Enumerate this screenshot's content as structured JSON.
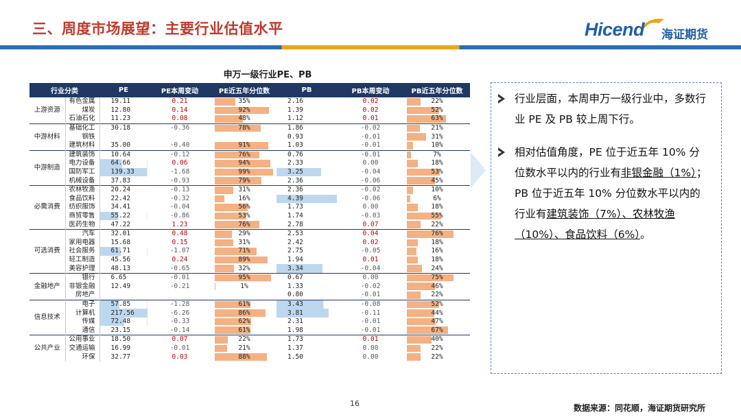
{
  "header": {
    "title": "三、周度市场展望：主要行业估值水平",
    "logo_text": "Hicend",
    "logo_cn": "海证期货"
  },
  "table": {
    "title": "申万一级行业PE、PB",
    "columns": [
      "行业分类",
      "PE",
      "PE本周变动",
      "PE近五年分位数",
      "PB",
      "PB本周变动",
      "PB近五年分位数"
    ],
    "groups": [
      {
        "name": "上游资源",
        "rows": [
          {
            "ind": "有色金属",
            "pe": "19.11",
            "pe_chg": "0.21",
            "pe_pct": "35%",
            "pe_p": 35,
            "pb": "2.16",
            "pb_chg": "0.02",
            "pb_pct": "22%",
            "pb_p": 22
          },
          {
            "ind": "煤炭",
            "pe": "12.80",
            "pe_chg": "0.14",
            "pe_pct": "92%",
            "pe_p": 92,
            "pb": "1.39",
            "pb_chg": "0.02",
            "pb_pct": "52%",
            "pb_p": 52
          },
          {
            "ind": "石油石化",
            "pe": "11.23",
            "pe_chg": "0.08",
            "pe_pct": "48%",
            "pe_p": 48,
            "pb": "1.12",
            "pb_chg": "0.01",
            "pb_pct": "63%",
            "pb_p": 63
          }
        ]
      },
      {
        "name": "中游材料",
        "rows": [
          {
            "ind": "基础化工",
            "pe": "30.18",
            "pe_chg": "-0.36",
            "pe_pct": "78%",
            "pe_p": 78,
            "pb": "1.86",
            "pb_chg": "-0.02",
            "pb_pct": "21%",
            "pb_p": 21
          },
          {
            "ind": "钢铁",
            "pe": "",
            "pe_chg": "",
            "pe_pct": "",
            "pe_p": 0,
            "pb": "0.93",
            "pb_chg": "-0.01",
            "pb_pct": "31%",
            "pb_p": 31
          },
          {
            "ind": "建筑材料",
            "pe": "35.00",
            "pe_chg": "-0.40",
            "pe_pct": "91%",
            "pe_p": 91,
            "pb": "1.03",
            "pb_chg": "-0.01",
            "pb_pct": "10%",
            "pb_p": 10
          }
        ]
      },
      {
        "name": "中游制造",
        "rows": [
          {
            "ind": "建筑装饰",
            "pe": "10.64",
            "pe_chg": "-0.12",
            "pe_pct": "76%",
            "pe_p": 76,
            "pb": "0.76",
            "pb_chg": "-0.01",
            "pb_pct": "7%",
            "pb_p": 7
          },
          {
            "ind": "电力设备",
            "pe": "64.66",
            "pe_chg": "0.06",
            "pe_pct": "94%",
            "pe_p": 94,
            "pb": "2.33",
            "pb_chg": "0.00",
            "pb_pct": "18%",
            "pb_p": 18
          },
          {
            "ind": "国防军工",
            "pe": "139.33",
            "pe_chg": "-1.68",
            "pe_pct": "99%",
            "pe_p": 99,
            "pb": "3.25",
            "pb_chg": "-0.04",
            "pb_pct": "53%",
            "pb_p": 53
          },
          {
            "ind": "机械设备",
            "pe": "37.83",
            "pe_chg": "-0.93",
            "pe_pct": "79%",
            "pe_p": 79,
            "pb": "2.36",
            "pb_chg": "-0.06",
            "pb_pct": "45%",
            "pb_p": 45
          }
        ]
      },
      {
        "name": "必需消费",
        "rows": [
          {
            "ind": "农林牧渔",
            "pe": "20.24",
            "pe_chg": "-0.13",
            "pe_pct": "31%",
            "pe_p": 31,
            "pb": "2.36",
            "pb_chg": "-0.02",
            "pb_pct": "10%",
            "pb_p": 10
          },
          {
            "ind": "食品饮料",
            "pe": "22.42",
            "pe_chg": "-0.32",
            "pe_pct": "16%",
            "pe_p": 16,
            "pb": "4.39",
            "pb_chg": "-0.06",
            "pb_pct": "6%",
            "pb_p": 6
          },
          {
            "ind": "纺织服饰",
            "pe": "34.41",
            "pe_chg": "-0.04",
            "pe_pct": "56%",
            "pe_p": 56,
            "pb": "1.73",
            "pb_chg": "0.00",
            "pb_pct": "18%",
            "pb_p": 18
          },
          {
            "ind": "商贸零售",
            "pe": "55.22",
            "pe_chg": "-0.86",
            "pe_pct": "53%",
            "pe_p": 53,
            "pb": "1.74",
            "pb_chg": "-0.03",
            "pb_pct": "55%",
            "pb_p": 55
          },
          {
            "ind": "医药生物",
            "pe": "47.22",
            "pe_chg": "1.23",
            "pe_pct": "76%",
            "pe_p": 76,
            "pb": "2.78",
            "pb_chg": "0.07",
            "pb_pct": "22%",
            "pb_p": 22
          }
        ]
      },
      {
        "name": "可选消费",
        "rows": [
          {
            "ind": "汽车",
            "pe": "32.01",
            "pe_chg": "0.48",
            "pe_pct": "29%",
            "pe_p": 29,
            "pb": "2.53",
            "pb_chg": "0.04",
            "pb_pct": "76%",
            "pb_p": 76
          },
          {
            "ind": "家用电器",
            "pe": "15.68",
            "pe_chg": "0.15",
            "pe_pct": "31%",
            "pe_p": 31,
            "pb": "2.42",
            "pb_chg": "0.02",
            "pb_pct": "18%",
            "pb_p": 18
          },
          {
            "ind": "社会服务",
            "pe": "61.71",
            "pe_chg": "-1.07",
            "pe_pct": "71%",
            "pe_p": 71,
            "pb": "2.75",
            "pb_chg": "-0.05",
            "pb_pct": "16%",
            "pb_p": 16
          },
          {
            "ind": "轻工制造",
            "pe": "45.56",
            "pe_chg": "0.24",
            "pe_pct": "89%",
            "pe_p": 89,
            "pb": "1.94",
            "pb_chg": "0.01",
            "pb_pct": "18%",
            "pb_p": 18
          },
          {
            "ind": "美容护理",
            "pe": "48.13",
            "pe_chg": "-0.65",
            "pe_pct": "32%",
            "pe_p": 32,
            "pb": "3.34",
            "pb_chg": "-0.04",
            "pb_pct": "24%",
            "pb_p": 24
          }
        ]
      },
      {
        "name": "金融地产",
        "rows": [
          {
            "ind": "银行",
            "pe": "6.65",
            "pe_chg": "-0.01",
            "pe_pct": "95%",
            "pe_p": 95,
            "pb": "0.67",
            "pb_chg": "0.00",
            "pb_pct": "75%",
            "pb_p": 75
          },
          {
            "ind": "非银金融",
            "pe": "12.49",
            "pe_chg": "-0.21",
            "pe_pct": "1%",
            "pe_p": 1,
            "pb": "1.33",
            "pb_chg": "-0.02",
            "pb_pct": "46%",
            "pb_p": 46
          },
          {
            "ind": "房地产",
            "pe": "",
            "pe_chg": "",
            "pe_pct": "",
            "pe_p": 0,
            "pb": "0.80",
            "pb_chg": "-0.01",
            "pb_pct": "22%",
            "pb_p": 22
          }
        ]
      },
      {
        "name": "信息技术",
        "rows": [
          {
            "ind": "电子",
            "pe": "57.85",
            "pe_chg": "-1.28",
            "pe_pct": "61%",
            "pe_p": 61,
            "pb": "3.43",
            "pb_chg": "-0.08",
            "pb_pct": "52%",
            "pb_p": 52
          },
          {
            "ind": "计算机",
            "pe": "217.56",
            "pe_chg": "-6.26",
            "pe_pct": "86%",
            "pe_p": 86,
            "pb": "3.81",
            "pb_chg": "-0.11",
            "pb_pct": "44%",
            "pb_p": 44
          },
          {
            "ind": "传媒",
            "pe": "72.48",
            "pe_chg": "-0.33",
            "pe_pct": "62%",
            "pe_p": 62,
            "pb": "2.31",
            "pb_chg": "-0.01",
            "pb_pct": "47%",
            "pb_p": 47
          },
          {
            "ind": "通信",
            "pe": "23.15",
            "pe_chg": "-0.14",
            "pe_pct": "61%",
            "pe_p": 61,
            "pb": "1.98",
            "pb_chg": "-0.01",
            "pb_pct": "67%",
            "pb_p": 67
          }
        ]
      },
      {
        "name": "公共产业",
        "rows": [
          {
            "ind": "公用事业",
            "pe": "18.50",
            "pe_chg": "0.07",
            "pe_pct": "22%",
            "pe_p": 22,
            "pb": "1.73",
            "pb_chg": "0.01",
            "pb_pct": "40%",
            "pb_p": 40
          },
          {
            "ind": "交通运输",
            "pe": "16.99",
            "pe_chg": "-0.01",
            "pe_pct": "21%",
            "pe_p": 21,
            "pb": "1.37",
            "pb_chg": "0.00",
            "pb_pct": "22%",
            "pb_p": 22
          },
          {
            "ind": "环保",
            "pe": "32.77",
            "pe_chg": "0.03",
            "pe_pct": "88%",
            "pe_p": 88,
            "pb": "1.50",
            "pb_chg": "0.00",
            "pb_pct": "22%",
            "pb_p": 22
          }
        ]
      }
    ]
  },
  "panel": {
    "b1": "行业层面，本周申万一级行业中，多数行业 PE 及 PB 较上周下行。",
    "b2_a": "相对估值角度，PE 位于近五年 10% 分位数水平以内的行业有",
    "b2_u1": "非银金融（1%）",
    "b2_b": "；PB 位于近五年 10% 分位数水平以内的行业有",
    "b2_u2": "建筑装饰（7%）、农林牧渔（10%）、食品饮料（6%）",
    "b2_c": "。"
  },
  "footer": {
    "page_number": "16",
    "source": "数据来源：同花顺，海证期货研究所"
  },
  "colors": {
    "title_red": "#c0392b",
    "header_navy": "#1f3864",
    "bar_orange": "#f4b183",
    "neg_red": "#c00000",
    "brand_blue": "#1f5fa8"
  }
}
